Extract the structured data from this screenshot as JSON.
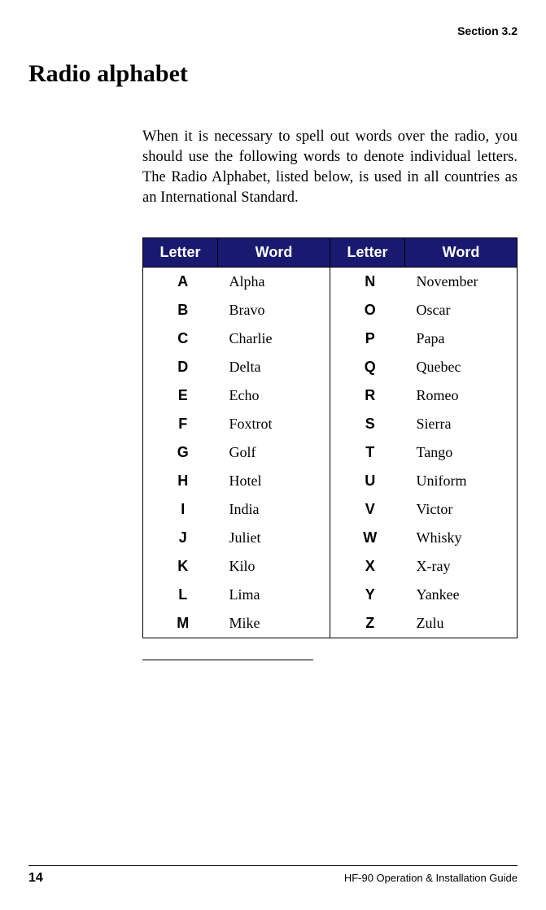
{
  "section_label": "Section 3.2",
  "title": "Radio alphabet",
  "intro": "When it is necessary to spell out words over the radio, you should use the following words to denote individual letters. The Radio Alphabet, listed below, is used in all countries as an International Standard.",
  "table": {
    "headers": {
      "letter": "Letter",
      "word": "Word"
    },
    "header_bg": "#191970",
    "header_fg": "#ffffff",
    "rows": [
      {
        "l1": "A",
        "w1": "Alpha",
        "l2": "N",
        "w2": "November"
      },
      {
        "l1": "B",
        "w1": "Bravo",
        "l2": "O",
        "w2": "Oscar"
      },
      {
        "l1": "C",
        "w1": "Charlie",
        "l2": "P",
        "w2": "Papa"
      },
      {
        "l1": "D",
        "w1": "Delta",
        "l2": "Q",
        "w2": "Quebec"
      },
      {
        "l1": "E",
        "w1": "Echo",
        "l2": "R",
        "w2": "Romeo"
      },
      {
        "l1": "F",
        "w1": "Foxtrot",
        "l2": "S",
        "w2": "Sierra"
      },
      {
        "l1": "G",
        "w1": "Golf",
        "l2": "T",
        "w2": "Tango"
      },
      {
        "l1": "H",
        "w1": "Hotel",
        "l2": "U",
        "w2": "Uniform"
      },
      {
        "l1": "I",
        "w1": "India",
        "l2": "V",
        "w2": "Victor"
      },
      {
        "l1": "J",
        "w1": "Juliet",
        "l2": "W",
        "w2": "Whisky"
      },
      {
        "l1": "K",
        "w1": "Kilo",
        "l2": "X",
        "w2": "X-ray"
      },
      {
        "l1": "L",
        "w1": "Lima",
        "l2": "Y",
        "w2": "Yankee"
      },
      {
        "l1": "M",
        "w1": "Mike",
        "l2": "Z",
        "w2": "Zulu"
      }
    ]
  },
  "footer": {
    "page_number": "14",
    "doc_title": "HF-90 Operation & Installation Guide"
  }
}
